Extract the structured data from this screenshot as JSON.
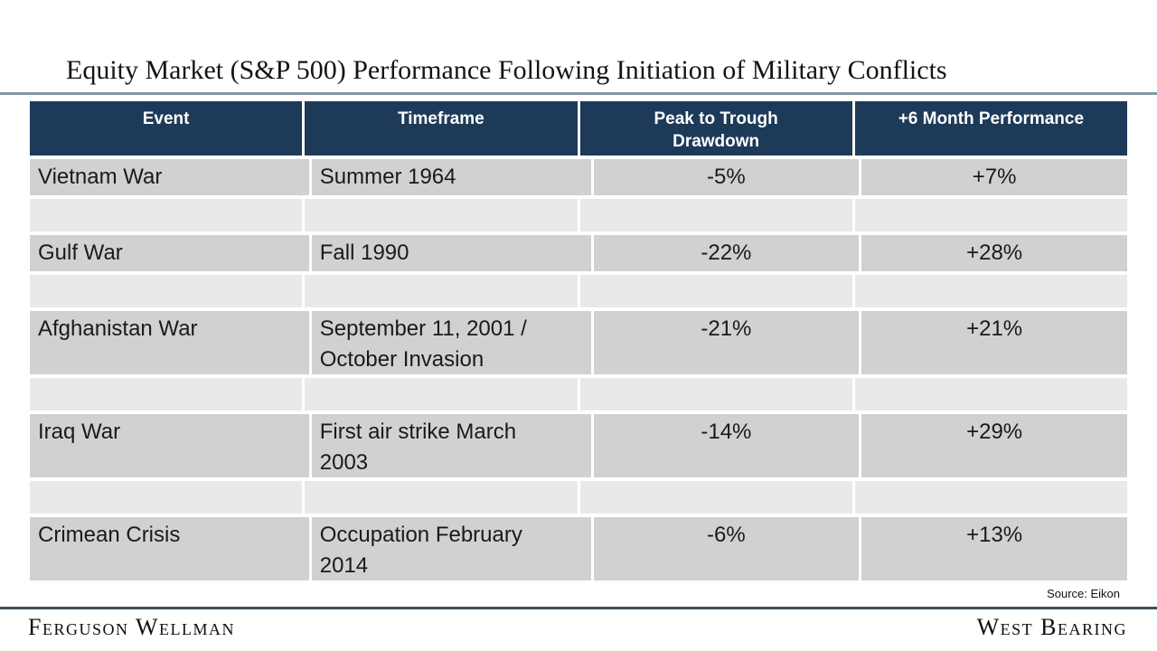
{
  "title": "Equity Market (S&P 500) Performance Following Initiation of Military Conflicts",
  "table": {
    "headers": {
      "event": "Event",
      "timeframe": "Timeframe",
      "drawdown": "Peak to Trough\nDrawdown",
      "performance": "+6 Month Performance"
    },
    "rows": [
      {
        "event": "Vietnam War",
        "timeframe": "Summer 1964",
        "drawdown": "-5%",
        "performance": "+7%"
      },
      {
        "event": "Gulf War",
        "timeframe": "Fall 1990",
        "drawdown": "-22%",
        "performance": "+28%"
      },
      {
        "event": "Afghanistan War",
        "timeframe": "September 11, 2001 /\nOctober Invasion",
        "drawdown": "-21%",
        "performance": "+21%"
      },
      {
        "event": "Iraq War",
        "timeframe": "First air strike March\n2003",
        "drawdown": "-14%",
        "performance": "+29%"
      },
      {
        "event": "Crimean Crisis",
        "timeframe": "Occupation February\n2014",
        "drawdown": "-6%",
        "performance": "+13%"
      }
    ]
  },
  "source": "Source: Eikon",
  "footer": {
    "left": "Ferguson Wellman",
    "right": "West Bearing"
  },
  "colors": {
    "header_bg": "#1d3a58",
    "data_row_bg": "#d1d1d3",
    "spacer_row_bg": "#e9e9ea",
    "title_rule": "#8398a9",
    "footer_rule": "#41505a",
    "header_text": "#ffffff",
    "body_text": "#1a1a1a"
  }
}
